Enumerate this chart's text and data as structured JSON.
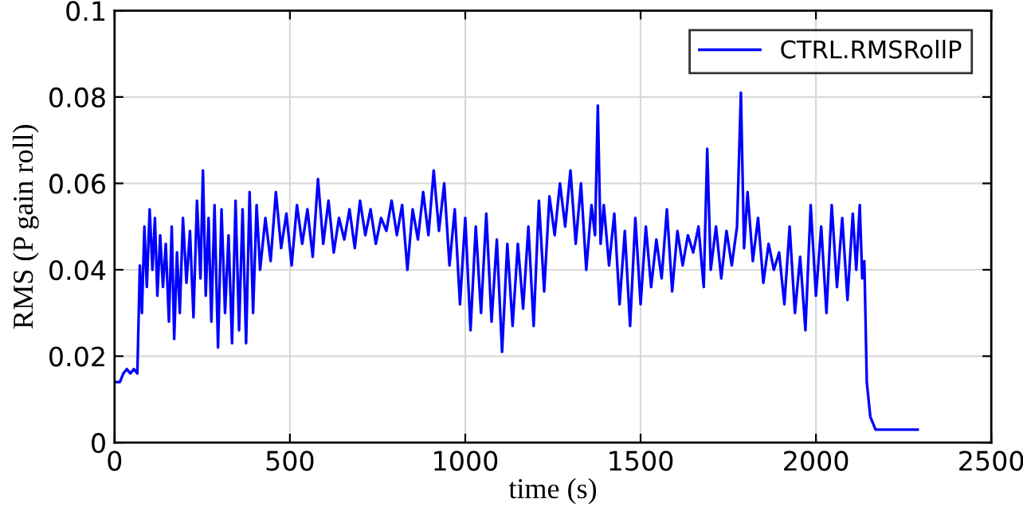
{
  "chart_data": {
    "type": "line",
    "xlabel": "time (s)",
    "ylabel": "RMS (P gain roll)",
    "xlim": [
      0,
      2500
    ],
    "ylim": [
      0,
      0.1
    ],
    "xticks": [
      0,
      500,
      1000,
      1500,
      2000,
      2500
    ],
    "yticks": [
      0,
      0.02,
      0.04,
      0.06,
      0.08,
      0.1
    ],
    "grid": true,
    "legend": "top right",
    "line_style": "solid",
    "marker": "none",
    "series": [
      {
        "name": "CTRL.RMSRollP",
        "color": "#0000ff",
        "x": [
          0,
          15,
          25,
          35,
          45,
          55,
          65,
          72,
          78,
          85,
          92,
          100,
          108,
          115,
          122,
          130,
          138,
          146,
          155,
          163,
          170,
          178,
          186,
          195,
          205,
          215,
          225,
          235,
          245,
          252,
          260,
          268,
          276,
          285,
          295,
          305,
          315,
          325,
          335,
          345,
          355,
          365,
          375,
          385,
          395,
          405,
          415,
          430,
          445,
          460,
          475,
          490,
          505,
          520,
          535,
          550,
          565,
          580,
          595,
          610,
          625,
          640,
          655,
          670,
          685,
          700,
          715,
          730,
          745,
          760,
          775,
          790,
          805,
          820,
          835,
          850,
          865,
          880,
          895,
          910,
          925,
          940,
          955,
          970,
          985,
          1000,
          1015,
          1030,
          1045,
          1060,
          1075,
          1090,
          1105,
          1120,
          1135,
          1150,
          1165,
          1180,
          1195,
          1210,
          1225,
          1240,
          1255,
          1270,
          1285,
          1300,
          1315,
          1330,
          1345,
          1360,
          1370,
          1378,
          1386,
          1395,
          1410,
          1425,
          1440,
          1455,
          1470,
          1485,
          1500,
          1515,
          1530,
          1545,
          1560,
          1575,
          1590,
          1605,
          1620,
          1635,
          1650,
          1665,
          1680,
          1690,
          1700,
          1715,
          1730,
          1745,
          1760,
          1775,
          1786,
          1795,
          1805,
          1820,
          1835,
          1850,
          1865,
          1880,
          1895,
          1910,
          1925,
          1940,
          1955,
          1970,
          1985,
          2000,
          2015,
          2030,
          2045,
          2060,
          2075,
          2090,
          2105,
          2115,
          2125,
          2132,
          2138,
          2145,
          2155,
          2170,
          2200,
          2290
        ],
        "values": [
          0.014,
          0.014,
          0.016,
          0.017,
          0.016,
          0.017,
          0.016,
          0.041,
          0.03,
          0.05,
          0.036,
          0.054,
          0.04,
          0.052,
          0.034,
          0.048,
          0.036,
          0.046,
          0.028,
          0.05,
          0.024,
          0.044,
          0.03,
          0.052,
          0.037,
          0.049,
          0.029,
          0.056,
          0.038,
          0.063,
          0.034,
          0.052,
          0.028,
          0.055,
          0.022,
          0.054,
          0.03,
          0.048,
          0.023,
          0.056,
          0.026,
          0.054,
          0.023,
          0.058,
          0.03,
          0.055,
          0.04,
          0.052,
          0.042,
          0.058,
          0.045,
          0.053,
          0.041,
          0.055,
          0.046,
          0.054,
          0.043,
          0.061,
          0.046,
          0.056,
          0.044,
          0.052,
          0.047,
          0.054,
          0.045,
          0.056,
          0.048,
          0.054,
          0.046,
          0.052,
          0.049,
          0.056,
          0.048,
          0.055,
          0.04,
          0.054,
          0.047,
          0.058,
          0.048,
          0.063,
          0.049,
          0.06,
          0.041,
          0.054,
          0.032,
          0.052,
          0.026,
          0.05,
          0.03,
          0.053,
          0.028,
          0.047,
          0.021,
          0.046,
          0.027,
          0.046,
          0.031,
          0.05,
          0.027,
          0.056,
          0.035,
          0.057,
          0.048,
          0.06,
          0.05,
          0.063,
          0.046,
          0.06,
          0.04,
          0.055,
          0.048,
          0.078,
          0.046,
          0.055,
          0.041,
          0.053,
          0.032,
          0.049,
          0.027,
          0.052,
          0.032,
          0.05,
          0.036,
          0.047,
          0.038,
          0.054,
          0.035,
          0.049,
          0.041,
          0.048,
          0.044,
          0.05,
          0.036,
          0.068,
          0.04,
          0.05,
          0.038,
          0.049,
          0.041,
          0.05,
          0.081,
          0.045,
          0.058,
          0.042,
          0.052,
          0.037,
          0.046,
          0.04,
          0.044,
          0.032,
          0.05,
          0.03,
          0.043,
          0.026,
          0.055,
          0.034,
          0.05,
          0.03,
          0.055,
          0.036,
          0.052,
          0.033,
          0.053,
          0.04,
          0.055,
          0.038,
          0.042,
          0.014,
          0.006,
          0.003,
          0.003,
          0.003
        ]
      }
    ]
  }
}
